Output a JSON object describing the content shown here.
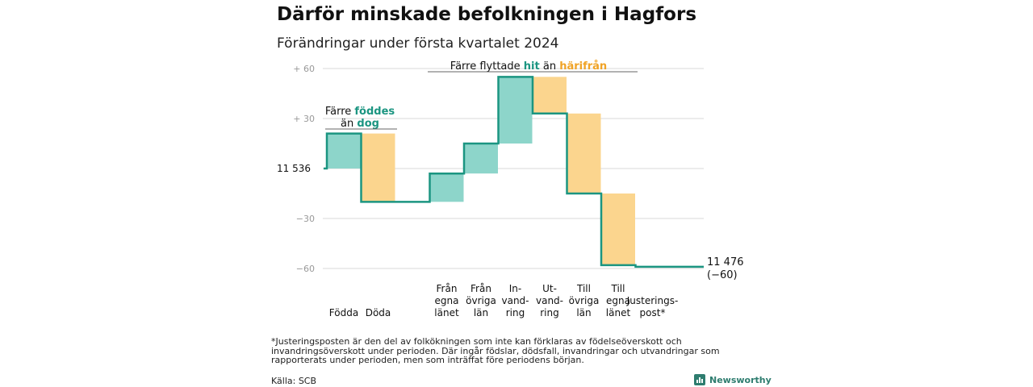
{
  "title": "Därför minskade befolkningen i Hagfors",
  "subtitle": "Förändringar under första kvartalet 2024",
  "footnote": "*Justeringsposten är den del av folkökningen som inte kan förklaras av födelseöverskott och invandringsöverskott under perioden. Där ingår födslar, dödsfall, invandringar och utvandringar som rapporterats under perioden, men som inträffat före periodens början.",
  "source": "Källa: SCB",
  "brand": "Newsworthy",
  "chart_data": {
    "type": "waterfall",
    "start_label": "11  536",
    "end_label_line1": "11 476",
    "end_label_line2": "(−60)",
    "y_ticks": [
      {
        "value": 60,
        "label": "+  60"
      },
      {
        "value": 30,
        "label": "+  30"
      },
      {
        "value": 0,
        "label": ""
      },
      {
        "value": -30,
        "label": "−30"
      },
      {
        "value": -60,
        "label": "−60"
      }
    ],
    "ylim": [
      -60,
      60
    ],
    "steps": [
      {
        "label": [
          "Födda"
        ],
        "value": 21,
        "kind": "in"
      },
      {
        "label": [
          "Döda"
        ],
        "value": -41,
        "kind": "out"
      },
      {
        "label": [],
        "value": 0,
        "kind": "gap"
      },
      {
        "label": [
          "Från",
          "egna",
          "länet"
        ],
        "value": 17,
        "kind": "in"
      },
      {
        "label": [
          "Från",
          "övriga",
          "län"
        ],
        "value": 18,
        "kind": "in"
      },
      {
        "label": [
          "In-",
          "vand-",
          "ring"
        ],
        "value": 40,
        "kind": "in"
      },
      {
        "label": [
          "Ut-",
          "vand-",
          "ring"
        ],
        "value": -22,
        "kind": "out"
      },
      {
        "label": [
          "Till",
          "övriga",
          "län"
        ],
        "value": -48,
        "kind": "out"
      },
      {
        "label": [
          "Till",
          "egna",
          "länet"
        ],
        "value": -43,
        "kind": "out"
      },
      {
        "label": [
          "Justerings-",
          "post*"
        ],
        "value": -1,
        "kind": "adj"
      }
    ],
    "annotations": [
      {
        "parts": [
          "Färre ",
          "föddes"
        ],
        "parts2": [
          "än ",
          "dog"
        ]
      },
      {
        "parts": [
          "Färre flyttade ",
          "hit",
          "  än ",
          "härifrån"
        ]
      }
    ],
    "colors": {
      "in_fill": "#8dd5ca",
      "out_fill": "#fbd58e",
      "line": "#1b9581",
      "in_text": "#1b9581",
      "out_text": "#f0a326",
      "grid": "#d9d9d9",
      "axis_text": "#999999"
    }
  }
}
